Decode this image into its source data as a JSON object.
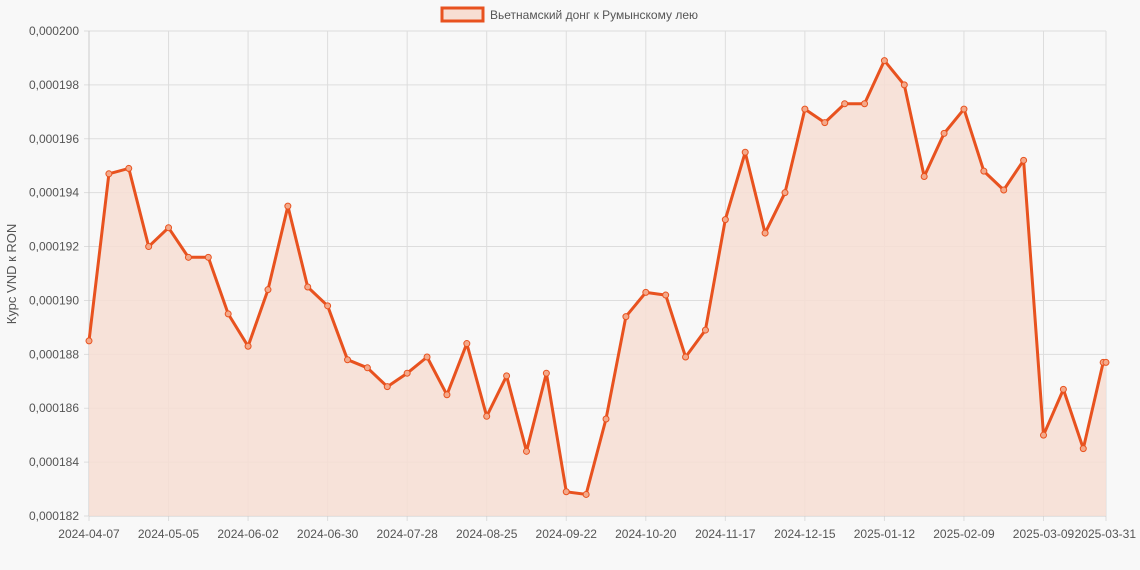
{
  "chart_data": {
    "type": "area",
    "title": "",
    "xlabel": "",
    "ylabel": "Курс VND к RON",
    "legend": {
      "position": "top-center",
      "entries": [
        "Вьетнамский донг к Румынскому лею"
      ]
    },
    "grid": true,
    "x_ticks": [
      "2024-04-07",
      "2024-05-05",
      "2024-06-02",
      "2024-06-30",
      "2024-07-28",
      "2024-08-25",
      "2024-09-22",
      "2024-10-20",
      "2024-11-17",
      "2024-12-15",
      "2025-01-12",
      "2025-02-09",
      "2025-03-09",
      "2025-03-31"
    ],
    "y_ticks": [
      "0,000182",
      "0,000184",
      "0,000186",
      "0,000188",
      "0,000190",
      "0,000192",
      "0,000194",
      "0,000196",
      "0,000198",
      "0,000200"
    ],
    "ylim": [
      0.000182,
      0.0002
    ],
    "xlim": [
      "2024-04-07",
      "2025-03-31"
    ],
    "series": [
      {
        "name": "Вьетнамский донг к Румынскому лею",
        "color": "#e8521f",
        "fill": "#f7ded3",
        "x": [
          "2024-04-07",
          "2024-04-14",
          "2024-04-21",
          "2024-04-28",
          "2024-05-05",
          "2024-05-12",
          "2024-05-19",
          "2024-05-26",
          "2024-06-02",
          "2024-06-09",
          "2024-06-16",
          "2024-06-23",
          "2024-06-30",
          "2024-07-07",
          "2024-07-14",
          "2024-07-21",
          "2024-07-28",
          "2024-08-04",
          "2024-08-11",
          "2024-08-18",
          "2024-08-25",
          "2024-09-01",
          "2024-09-08",
          "2024-09-15",
          "2024-09-22",
          "2024-09-29",
          "2024-10-06",
          "2024-10-13",
          "2024-10-20",
          "2024-10-27",
          "2024-11-03",
          "2024-11-10",
          "2024-11-17",
          "2024-11-24",
          "2024-12-01",
          "2024-12-08",
          "2024-12-15",
          "2024-12-22",
          "2024-12-29",
          "2025-01-05",
          "2025-01-12",
          "2025-01-19",
          "2025-01-26",
          "2025-02-02",
          "2025-02-09",
          "2025-02-16",
          "2025-02-23",
          "2025-03-02",
          "2025-03-09",
          "2025-03-16",
          "2025-03-23",
          "2025-03-30",
          "2025-03-31"
        ],
        "values": [
          0.0001885,
          0.0001947,
          0.0001949,
          0.000192,
          0.0001927,
          0.0001916,
          0.0001916,
          0.0001895,
          0.0001883,
          0.0001904,
          0.0001935,
          0.0001905,
          0.0001898,
          0.0001878,
          0.0001875,
          0.0001868,
          0.0001873,
          0.0001879,
          0.0001865,
          0.0001884,
          0.0001857,
          0.0001872,
          0.0001844,
          0.0001873,
          0.0001829,
          0.0001828,
          0.0001856,
          0.0001894,
          0.0001903,
          0.0001902,
          0.0001879,
          0.0001889,
          0.000193,
          0.0001955,
          0.0001925,
          0.000194,
          0.0001971,
          0.0001966,
          0.0001973,
          0.0001973,
          0.0001989,
          0.000198,
          0.0001946,
          0.0001962,
          0.0001971,
          0.0001948,
          0.0001941,
          0.0001952,
          0.000185,
          0.0001867,
          0.0001845,
          0.0001877,
          0.0001877
        ]
      }
    ]
  }
}
